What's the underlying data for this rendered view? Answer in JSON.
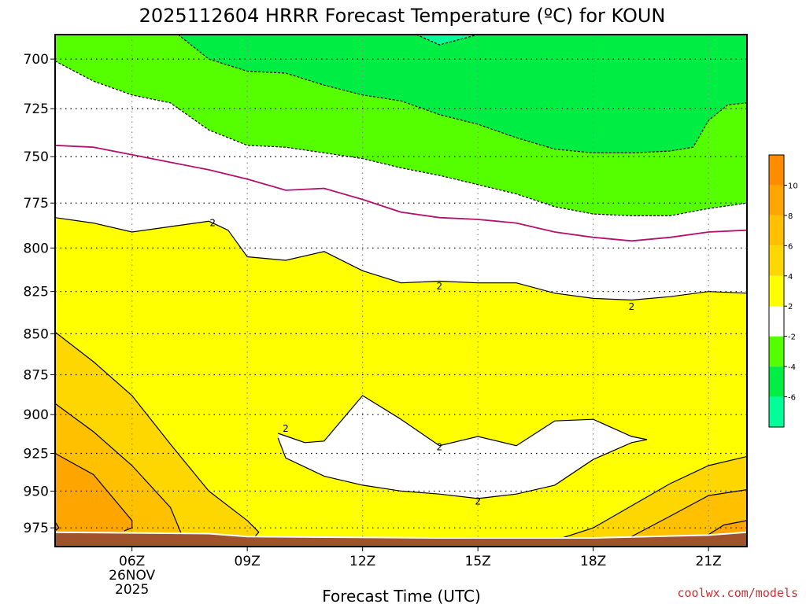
{
  "chart_data": {
    "type": "heatmap",
    "title": "2025112604 HRRR Forecast Temperature (ºC) for KOUN",
    "xlabel": "Forecast Time (UTC)",
    "ylabel": "",
    "x_ticks": [
      {
        "hour": 6,
        "label": "06Z",
        "sub1": "26NOV",
        "sub2": "2025"
      },
      {
        "hour": 9,
        "label": "09Z"
      },
      {
        "hour": 12,
        "label": "12Z"
      },
      {
        "hour": 15,
        "label": "15Z"
      },
      {
        "hour": 18,
        "label": "18Z"
      },
      {
        "hour": 21,
        "label": "21Z"
      }
    ],
    "xlim": [
      4,
      22
    ],
    "y_ticks": [
      700,
      725,
      750,
      775,
      800,
      825,
      850,
      875,
      900,
      925,
      950,
      975
    ],
    "ylim": [
      688,
      988
    ],
    "y_scale": "log-pressure",
    "grid": true,
    "colorbar": {
      "ticks": [
        "10",
        "8",
        "6",
        "4",
        "2",
        "-2",
        "-4",
        "-6"
      ],
      "bands": [
        {
          "range": [
            10,
            12
          ],
          "color": "#ff8c00"
        },
        {
          "range": [
            8,
            10
          ],
          "color": "#ffa500"
        },
        {
          "range": [
            6,
            8
          ],
          "color": "#ffc000"
        },
        {
          "range": [
            4,
            6
          ],
          "color": "#ffd700"
        },
        {
          "range": [
            2,
            4
          ],
          "color": "#ffff00"
        },
        {
          "range": [
            -2,
            2
          ],
          "color": "#ffffff"
        },
        {
          "range": [
            -4,
            -2
          ],
          "color": "#55ff00"
        },
        {
          "range": [
            -6,
            -4
          ],
          "color": "#00ee44"
        },
        {
          "range": [
            -8,
            -6
          ],
          "color": "#00ff99"
        }
      ]
    },
    "contours": [
      {
        "level": -2,
        "style": "dashed",
        "points": [
          [
            4,
            701
          ],
          [
            5,
            711
          ],
          [
            6,
            718
          ],
          [
            7,
            722
          ],
          [
            8,
            736
          ],
          [
            9,
            744
          ],
          [
            10,
            745
          ],
          [
            11,
            748
          ],
          [
            12,
            751
          ],
          [
            13,
            756
          ],
          [
            14,
            760
          ],
          [
            15,
            765
          ],
          [
            16,
            770
          ],
          [
            17,
            777
          ],
          [
            18,
            781
          ],
          [
            19,
            782
          ],
          [
            20,
            782
          ],
          [
            21,
            778
          ],
          [
            22,
            775
          ]
        ]
      },
      {
        "level": -2,
        "style": "dashed",
        "points": [
          [
            7.2,
            688
          ],
          [
            8,
            700
          ],
          [
            9,
            706
          ],
          [
            10,
            707
          ],
          [
            11,
            713
          ],
          [
            12,
            718
          ],
          [
            13,
            721
          ],
          [
            14,
            728
          ],
          [
            15,
            733
          ],
          [
            16,
            740
          ],
          [
            17,
            746
          ],
          [
            18,
            748
          ],
          [
            19,
            748
          ],
          [
            20,
            747
          ],
          [
            20.6,
            745
          ],
          [
            21,
            731
          ],
          [
            21.5,
            723
          ],
          [
            22,
            722
          ]
        ]
      },
      {
        "level": -4,
        "style": "dashed",
        "points": [
          [
            13.4,
            688
          ],
          [
            14,
            693
          ],
          [
            15,
            688
          ]
        ]
      },
      {
        "level": 0,
        "style": "solid",
        "color": "#b4106e",
        "points": [
          [
            4,
            744
          ],
          [
            5,
            745
          ],
          [
            6,
            749
          ],
          [
            7,
            753
          ],
          [
            8,
            757
          ],
          [
            9,
            762
          ],
          [
            10,
            768
          ],
          [
            11,
            767
          ],
          [
            12,
            773
          ],
          [
            13,
            780
          ],
          [
            14,
            783
          ],
          [
            15,
            784
          ],
          [
            16,
            786
          ],
          [
            17,
            791
          ],
          [
            18,
            794
          ],
          [
            19,
            796
          ],
          [
            20,
            794
          ],
          [
            21,
            791
          ],
          [
            22,
            790
          ]
        ]
      },
      {
        "level": 2,
        "style": "solid",
        "points": [
          [
            4,
            783
          ],
          [
            5,
            786
          ],
          [
            6,
            791
          ],
          [
            7,
            788
          ],
          [
            8,
            785
          ],
          [
            8.5,
            790
          ],
          [
            9,
            805
          ],
          [
            10,
            807
          ],
          [
            11,
            802
          ],
          [
            12,
            813
          ],
          [
            13,
            820
          ],
          [
            14,
            819
          ],
          [
            15,
            820
          ],
          [
            16,
            820
          ],
          [
            17,
            826
          ],
          [
            18,
            829
          ],
          [
            19,
            830
          ],
          [
            20,
            828
          ],
          [
            21,
            825
          ],
          [
            22,
            826
          ]
        ]
      },
      {
        "level": 2,
        "style": "solid",
        "points": [
          [
            9.8,
            912
          ],
          [
            10.5,
            918
          ],
          [
            11,
            917
          ],
          [
            12,
            888
          ],
          [
            13,
            903
          ],
          [
            14,
            920
          ],
          [
            15,
            914
          ],
          [
            16,
            920
          ],
          [
            17,
            904
          ],
          [
            18,
            903
          ],
          [
            19,
            914
          ],
          [
            19.4,
            916
          ],
          [
            19,
            918
          ],
          [
            18,
            929
          ],
          [
            17,
            946
          ],
          [
            16,
            952
          ],
          [
            15,
            955
          ],
          [
            14,
            952
          ],
          [
            13,
            950
          ],
          [
            12,
            946
          ],
          [
            11,
            940
          ],
          [
            10,
            928
          ],
          [
            9.8,
            915
          ]
        ]
      },
      {
        "level": 4,
        "style": "solid",
        "points": [
          [
            4,
            849
          ],
          [
            5,
            867
          ],
          [
            6,
            888
          ],
          [
            7,
            919
          ],
          [
            8,
            950
          ],
          [
            9,
            970
          ],
          [
            9.3,
            978
          ],
          [
            9.2,
            981
          ]
        ]
      },
      {
        "level": 6,
        "style": "solid",
        "points": [
          [
            4,
            893
          ],
          [
            5,
            911
          ],
          [
            6,
            933
          ],
          [
            7,
            961
          ],
          [
            7.3,
            980
          ]
        ]
      },
      {
        "level": 8,
        "style": "solid",
        "points": [
          [
            4,
            925
          ],
          [
            5,
            939
          ],
          [
            6,
            970
          ],
          [
            6,
            975
          ],
          [
            5.8,
            977
          ]
        ]
      },
      {
        "level": 10,
        "style": "solid",
        "points": [
          [
            4,
            971
          ],
          [
            4.1,
            975
          ],
          [
            4,
            977
          ]
        ]
      },
      {
        "level": 4,
        "style": "solid",
        "points": [
          [
            16.5,
            988
          ],
          [
            18,
            975
          ],
          [
            20,
            945
          ],
          [
            21,
            933
          ],
          [
            22,
            927
          ]
        ]
      },
      {
        "level": 6,
        "style": "solid",
        "points": [
          [
            18.5,
            988
          ],
          [
            20,
            967
          ],
          [
            21,
            953
          ],
          [
            22,
            949
          ]
        ]
      },
      {
        "level": 8,
        "style": "solid",
        "points": [
          [
            20.8,
            983
          ],
          [
            21.4,
            973
          ],
          [
            22,
            970
          ]
        ]
      }
    ],
    "contour_labels": [
      {
        "text": "2",
        "x": 8.1,
        "y": 786
      },
      {
        "text": "2",
        "x": 14,
        "y": 822
      },
      {
        "text": "2",
        "x": 19,
        "y": 834
      },
      {
        "text": "2",
        "x": 10,
        "y": 909
      },
      {
        "text": "2",
        "x": 14,
        "y": 921
      },
      {
        "text": "2",
        "x": 15,
        "y": 957
      }
    ],
    "ground_top": [
      [
        4,
        978
      ],
      [
        8,
        979
      ],
      [
        9,
        981
      ],
      [
        14,
        982
      ],
      [
        17,
        982
      ],
      [
        18,
        982
      ],
      [
        21,
        980
      ],
      [
        22,
        978
      ]
    ]
  },
  "credit": "coolwx.com/models"
}
